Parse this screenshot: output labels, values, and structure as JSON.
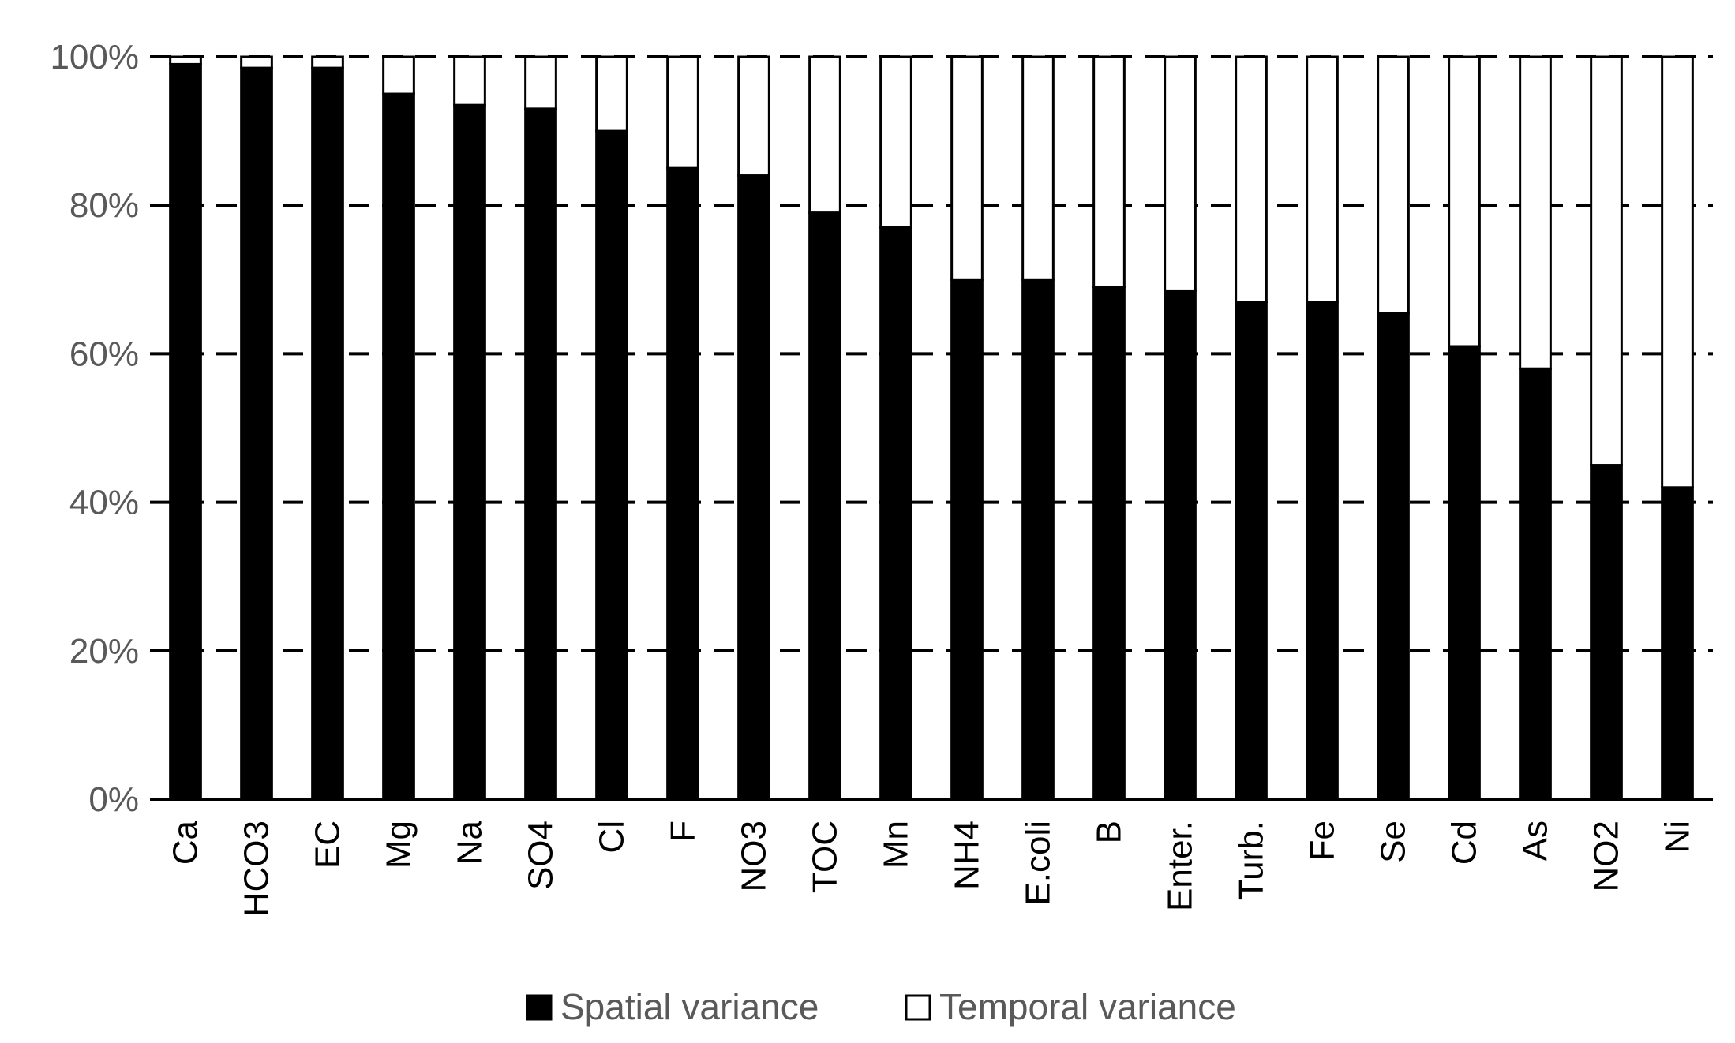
{
  "chart_data": {
    "type": "bar",
    "stacked": true,
    "percent_stacked": true,
    "categories": [
      "Ca",
      "HCO3",
      "EC",
      "Mg",
      "Na",
      "SO4",
      "Cl",
      "F",
      "NO3",
      "TOC",
      "Mn",
      "NH4",
      "E.coli",
      "B",
      "Enter.",
      "Turb.",
      "Fe",
      "Se",
      "Cd",
      "As",
      "NO2",
      "Ni"
    ],
    "series": [
      {
        "name": "Spatial variance",
        "color": "#000000",
        "values": [
          99,
          98.5,
          98.5,
          95,
          93.5,
          93,
          90,
          85,
          84,
          79,
          77,
          70,
          70,
          69,
          68.5,
          67,
          67,
          65.5,
          61,
          58,
          45,
          42
        ]
      },
      {
        "name": "Temporal variance",
        "color": "#ffffff",
        "values": [
          1,
          1.5,
          1.5,
          5,
          6.5,
          7,
          10,
          15,
          16,
          21,
          23,
          30,
          30,
          31,
          31.5,
          33,
          33,
          34.5,
          39,
          42,
          55,
          58
        ]
      }
    ],
    "yticks": [
      "0%",
      "20%",
      "40%",
      "60%",
      "80%",
      "100%"
    ],
    "ylim": [
      0,
      100
    ],
    "grid": "dashed horizontal",
    "legend_position": "bottom",
    "title": "",
    "xlabel": "",
    "ylabel": ""
  }
}
